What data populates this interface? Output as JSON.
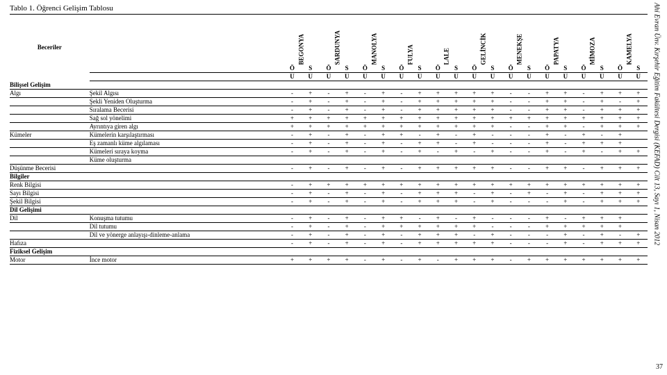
{
  "side_text": "Ahi Evran Ünv. Kırşehir Eğitim Fakültesi Dergisi (KEFAD) Cilt 13, Sayı 1, Nisan 2012",
  "page_number": "37",
  "table_caption": "Tablo 1. Öğrenci Gelişim Tablosu",
  "header_left": "Beceriler",
  "flowers": [
    "BEGONYA",
    "",
    "SARDUNYA",
    "",
    "MANOLYA",
    "",
    "FULYA",
    "",
    "LALE",
    "",
    "GELİNCİK",
    "",
    "MENEKŞE",
    "",
    "PAPATYA",
    "",
    "MİMOZA",
    "",
    "KAMELYA",
    ""
  ],
  "sub": [
    "Ö",
    "S",
    "Ö",
    "S",
    "Ö",
    "S",
    "Ö",
    "S",
    "Ö",
    "S",
    "Ö",
    "S",
    "Ö",
    "S",
    "Ö",
    "S",
    "Ö",
    "S",
    "Ö",
    "S"
  ],
  "sub2": [
    "U",
    "U",
    "U",
    "U",
    "U",
    "U",
    "U",
    "U",
    "U",
    "U",
    "U",
    "U",
    "U",
    "U",
    "U",
    "U",
    "U",
    "U",
    "U",
    "U"
  ],
  "sections": [
    {
      "group": "Bilişsel Gelişim",
      "rows": [
        {
          "cat": "Algı",
          "label": "Şekil Algısı",
          "v": [
            "-",
            "+",
            "-",
            "+",
            "-",
            "+",
            "-",
            "+",
            "+",
            "+",
            "+",
            "+",
            "-",
            "-",
            "+",
            "+",
            "-",
            "+",
            "+",
            "+"
          ]
        },
        {
          "cat": "",
          "label": "Şekli Yeniden Oluşturma",
          "v": [
            "-",
            "+",
            "-",
            "+",
            "-",
            "+",
            "-",
            "+",
            "+",
            "+",
            "+",
            "+",
            "-",
            "-",
            "+",
            "+",
            "-",
            "+",
            "-",
            "+"
          ]
        },
        {
          "cat": "",
          "label": "Sıralama Becerisi",
          "v": [
            "-",
            "+",
            "-",
            "+",
            "-",
            "+",
            "-",
            "+",
            "+",
            "+",
            "+",
            "+",
            "-",
            "-",
            "+",
            "+",
            "-",
            "+",
            "+",
            "+"
          ]
        },
        {
          "cat": "",
          "label": "Sağ sol yönelimi",
          "v": [
            "+",
            "+",
            "+",
            "+",
            "+",
            "+",
            "+",
            "+",
            "+",
            "+",
            "+",
            "+",
            "+",
            "+",
            "+",
            "+",
            "+",
            "+",
            "+",
            "+"
          ]
        },
        {
          "cat": "",
          "label": "Ayrıntıya giren algı",
          "v": [
            "+",
            "+",
            "+",
            "+",
            "+",
            "+",
            "+",
            "+",
            "+",
            "+",
            "+",
            "+",
            "-",
            "-",
            "+",
            "+",
            "-",
            "+",
            "+",
            "+"
          ]
        },
        {
          "cat": "Kümeler",
          "label": "Kümelerin karşılaştırması",
          "v": [
            "-",
            "+",
            "-",
            "+",
            "-",
            "+",
            "+",
            "-",
            "+",
            "-",
            "+",
            "-",
            "-",
            "-",
            "+",
            "-",
            "+",
            "-",
            "+",
            ""
          ]
        },
        {
          "cat": "",
          "label": "Eş zamanlı küme algılaması",
          "v": [
            "-",
            "+",
            "-",
            "+",
            "-",
            "+",
            "-",
            "+",
            "+",
            "-",
            "+",
            "-",
            "-",
            "-",
            "+",
            "-",
            "+",
            "+",
            "+",
            ""
          ]
        },
        {
          "cat": "",
          "label": "Kümeleri sıraya koyma",
          "v": [
            "-",
            "+",
            "-",
            "+",
            "-",
            "+",
            "-",
            "+",
            "-",
            "+",
            "-",
            "+",
            "-",
            "-",
            "+",
            "-",
            "+",
            "-",
            "+",
            "+"
          ]
        },
        {
          "cat": "",
          "label": "Küme oluşturma",
          "v": [
            "",
            "",
            "",
            "",
            "",
            "",
            "",
            "",
            "",
            "",
            "",
            "",
            "",
            "",
            "",
            "",
            "",
            "",
            "",
            ""
          ]
        },
        {
          "cat": "Düşünme Becerisi",
          "label": "",
          "v": [
            "-",
            "+",
            "-",
            "+",
            "-",
            "+",
            "-",
            "+",
            "+",
            "+",
            "+",
            "+",
            "-",
            "-",
            "+",
            "+",
            "-",
            "+",
            "+",
            "+"
          ]
        }
      ]
    },
    {
      "group": "Bilgiler",
      "rows": [
        {
          "cat": "Renk Bilgisi",
          "label": "",
          "v": [
            "-",
            "+",
            "+",
            "+",
            "+",
            "+",
            "+",
            "+",
            "+",
            "+",
            "+",
            "+",
            "+",
            "+",
            "+",
            "+",
            "+",
            "+",
            "+",
            "+"
          ]
        },
        {
          "cat": "Sayı Bilgisi",
          "label": "",
          "v": [
            "-",
            "+",
            "-",
            "+",
            "-",
            "+",
            "-",
            "+",
            "+",
            "+",
            "-",
            "+",
            "-",
            "+",
            "-",
            "+",
            "-",
            "+",
            "+",
            "+"
          ]
        },
        {
          "cat": "Şekil Bilgisi",
          "label": "",
          "v": [
            "-",
            "+",
            "-",
            "+",
            "-",
            "+",
            "-",
            "+",
            "+",
            "+",
            "-",
            "+",
            "-",
            "-",
            "-",
            "+",
            "-",
            "+",
            "+",
            "+"
          ]
        }
      ]
    },
    {
      "group": "Dil Gelişimi",
      "rows": [
        {
          "cat": "Dil",
          "label": "Konuşma tutumu",
          "v": [
            "-",
            "+",
            "-",
            "+",
            "-",
            "+",
            "+",
            "-",
            "+",
            "-",
            "+",
            "-",
            "-",
            "-",
            "+",
            "-",
            "+",
            "+",
            "+",
            ""
          ]
        },
        {
          "cat": "",
          "label": "Dil tutumu",
          "v": [
            "-",
            "+",
            "-",
            "+",
            "-",
            "+",
            "+",
            "+",
            "+",
            "+",
            "+",
            "-",
            "-",
            "-",
            "+",
            "+",
            "+",
            "+",
            "+",
            ""
          ]
        },
        {
          "cat": "",
          "label": "Dil ve yönerge anlayışı-dinleme-anlama",
          "v": [
            "-",
            "+",
            "-",
            "+",
            "-",
            "+",
            "-",
            "+",
            "+",
            "+",
            "-",
            "+",
            "-",
            "-",
            "-",
            "+",
            "-",
            "+",
            "-",
            "+"
          ]
        },
        {
          "cat": "Hafıza",
          "label": "",
          "v": [
            "-",
            "+",
            "-",
            "+",
            "-",
            "+",
            "-",
            "+",
            "+",
            "+",
            "+",
            "+",
            "-",
            "-",
            "-",
            "+",
            "-",
            "+",
            "+",
            "+"
          ]
        }
      ]
    },
    {
      "group": "Fiziksel Gelişim",
      "rows": [
        {
          "cat": "Motor",
          "label": "İnce motor",
          "v": [
            "+",
            "+",
            "+",
            "+",
            "-",
            "+",
            "-",
            "+",
            "-",
            "+",
            "+",
            "+",
            "-",
            "+",
            "+",
            "+",
            "+",
            "+",
            "+",
            "+"
          ]
        }
      ]
    }
  ]
}
